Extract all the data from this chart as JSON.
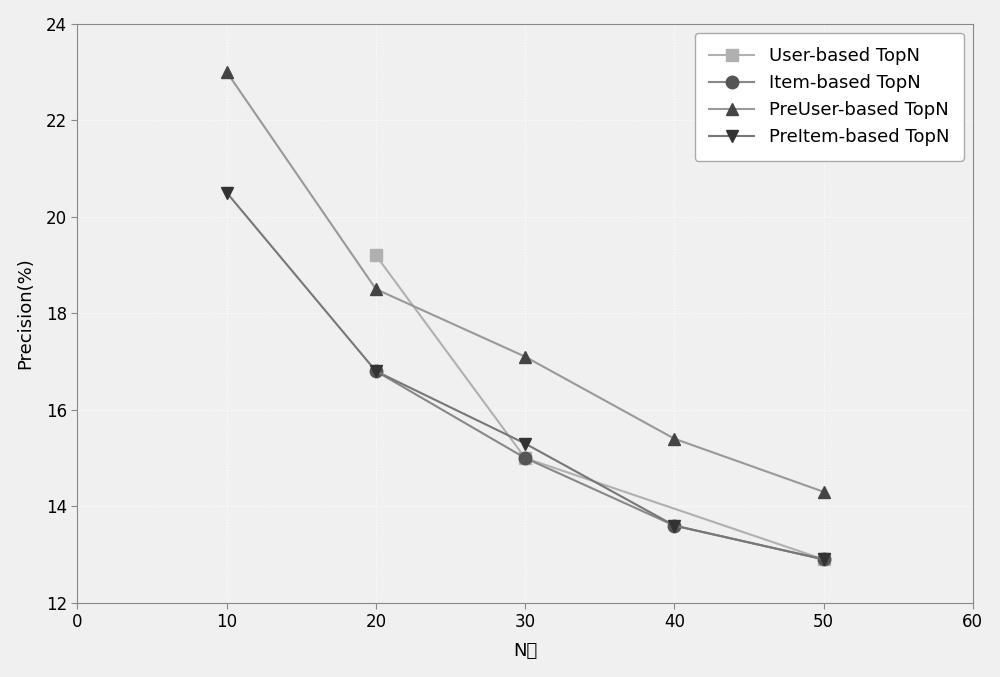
{
  "x": [
    10,
    20,
    30,
    40,
    50
  ],
  "series": [
    {
      "label": "User-based TopN",
      "y": [
        null,
        19.2,
        15.0,
        null,
        12.9
      ],
      "color": "#b0b0b0",
      "marker": "s",
      "markercolor": "#b0b0b0",
      "linestyle": "-"
    },
    {
      "label": "Item-based TopN",
      "y": [
        null,
        16.8,
        15.0,
        13.6,
        12.9
      ],
      "color": "#888888",
      "marker": "o",
      "markercolor": "#555555",
      "linestyle": "-"
    },
    {
      "label": "PreUser-based TopN",
      "y": [
        23.0,
        18.5,
        17.1,
        15.4,
        14.3
      ],
      "color": "#999999",
      "marker": "^",
      "markercolor": "#444444",
      "linestyle": "-"
    },
    {
      "label": "PreItem-based TopN",
      "y": [
        20.5,
        16.8,
        15.3,
        13.6,
        12.9
      ],
      "color": "#777777",
      "marker": "v",
      "markercolor": "#333333",
      "linestyle": "-"
    }
  ],
  "xlabel": "N値",
  "ylabel": "Precision(%)",
  "xlim": [
    0,
    60
  ],
  "ylim": [
    12,
    24
  ],
  "xticks": [
    0,
    10,
    20,
    30,
    40,
    50,
    60
  ],
  "yticks": [
    12,
    14,
    16,
    18,
    20,
    22,
    24
  ],
  "background_color": "#f0f0f0",
  "plot_bg_color": "#f0f0f0",
  "grid_color": "#ffffff",
  "axis_fontsize": 13,
  "legend_fontsize": 13,
  "markersize": 9,
  "linewidth": 1.5
}
